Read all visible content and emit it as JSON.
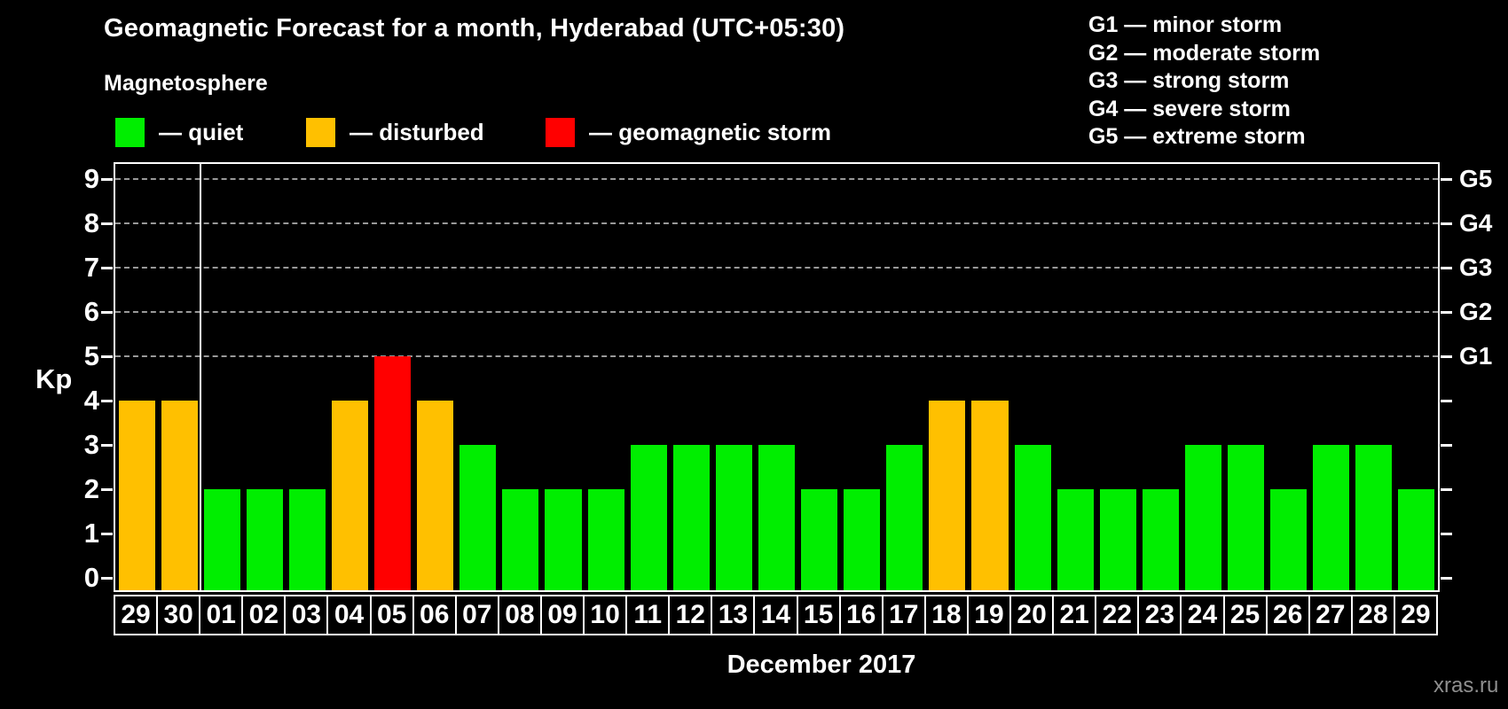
{
  "header": {
    "title": "Geomagnetic Forecast for a month, Hyderabad (UTC+05:30)",
    "subtitle": "Magnetosphere"
  },
  "legend": {
    "items": [
      {
        "key": "quiet",
        "label": "— quiet",
        "color": "#00EE00"
      },
      {
        "key": "disturbed",
        "label": "— disturbed",
        "color": "#FFC000"
      },
      {
        "key": "storm",
        "label": "— geomagnetic storm",
        "color": "#FF0000"
      }
    ]
  },
  "g_legend": [
    "G1 — minor storm",
    "G2 — moderate storm",
    "G3 — strong storm",
    "G4 — severe storm",
    "G5 — extreme storm"
  ],
  "watermark": "xras.ru",
  "chart_data": {
    "type": "bar",
    "title": "Geomagnetic Forecast for a month, Hyderabad (UTC+05:30)",
    "xlabel": "December 2017",
    "ylabel": "Kp",
    "ylim": [
      0,
      9
    ],
    "grid": "dashed horizontal at Kp 5-9",
    "legend_position": "top",
    "categories": [
      "29",
      "30",
      "01",
      "02",
      "03",
      "04",
      "05",
      "06",
      "07",
      "08",
      "09",
      "10",
      "11",
      "12",
      "13",
      "14",
      "15",
      "16",
      "17",
      "18",
      "19",
      "20",
      "21",
      "22",
      "23",
      "24",
      "25",
      "26",
      "27",
      "28",
      "29"
    ],
    "values": [
      4,
      4,
      2,
      2,
      2,
      4,
      5,
      4,
      3,
      2,
      2,
      2,
      3,
      3,
      3,
      3,
      2,
      2,
      3,
      4,
      4,
      3,
      2,
      2,
      2,
      3,
      3,
      2,
      3,
      3,
      2
    ],
    "statuses": [
      "disturbed",
      "disturbed",
      "quiet",
      "quiet",
      "quiet",
      "disturbed",
      "storm",
      "disturbed",
      "quiet",
      "quiet",
      "quiet",
      "quiet",
      "quiet",
      "quiet",
      "quiet",
      "quiet",
      "quiet",
      "quiet",
      "quiet",
      "disturbed",
      "disturbed",
      "quiet",
      "quiet",
      "quiet",
      "quiet",
      "quiet",
      "quiet",
      "quiet",
      "quiet",
      "quiet",
      "quiet"
    ],
    "status_colors": {
      "quiet": "#00EE00",
      "disturbed": "#FFC000",
      "storm": "#FF0000"
    },
    "left_ticks": [
      0,
      1,
      2,
      3,
      4,
      5,
      6,
      7,
      8,
      9
    ],
    "gridline_kp": [
      5,
      6,
      7,
      8,
      9
    ],
    "right_labels": [
      {
        "label": "G1",
        "kp": 5
      },
      {
        "label": "G2",
        "kp": 6
      },
      {
        "label": "G3",
        "kp": 7
      },
      {
        "label": "G4",
        "kp": 8
      },
      {
        "label": "G5",
        "kp": 9
      }
    ],
    "separator_after": 2,
    "separator_note": "white vertical line separates previous month days 29-30 from December 01"
  }
}
